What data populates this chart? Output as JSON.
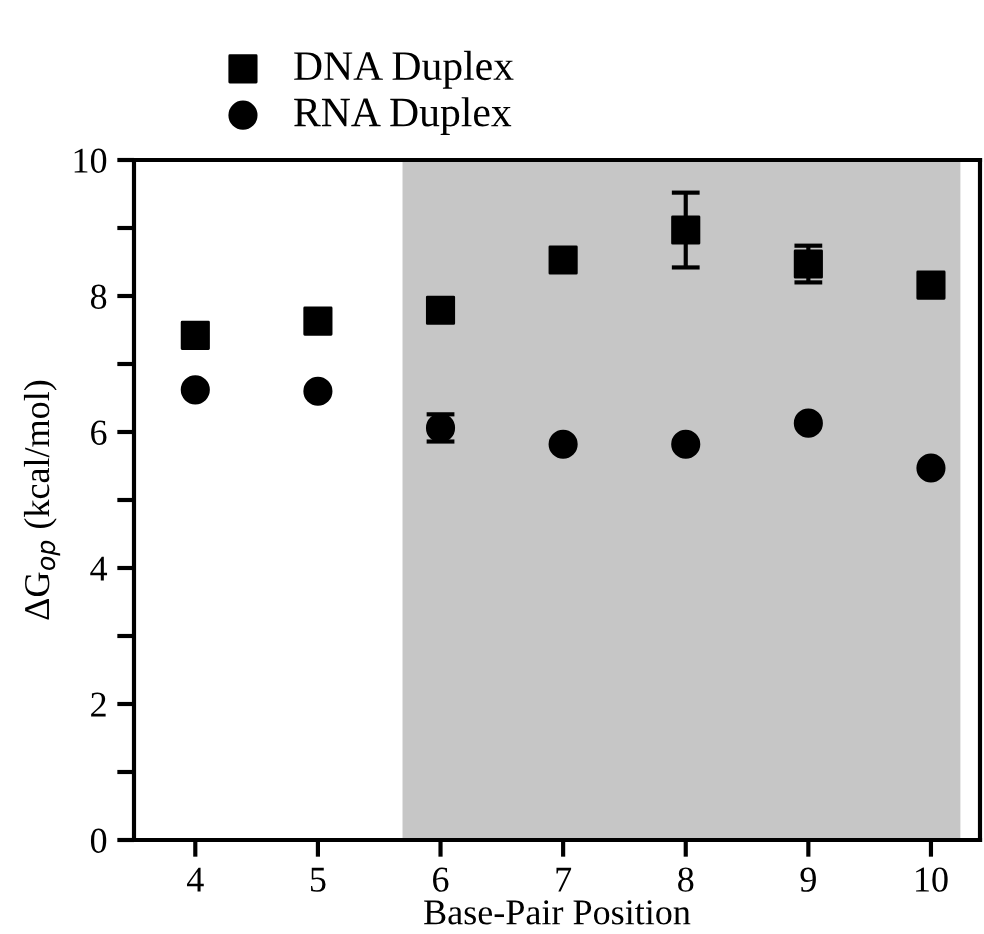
{
  "chart_data": {
    "type": "scatter",
    "xlabel": "Base-Pair Position",
    "ylabel": "ΔG$_{op}$ (kcal/mol)",
    "x": [
      4,
      5,
      6,
      7,
      8,
      9,
      10
    ],
    "series": [
      {
        "name": "DNA Duplex",
        "color": "#000000",
        "marker": "square",
        "values": [
          7.42,
          7.63,
          7.79,
          8.53,
          8.97,
          8.47,
          8.16
        ],
        "errors": [
          null,
          null,
          null,
          0.15,
          0.55,
          0.27,
          0.15
        ]
      },
      {
        "name": "RNA Duplex",
        "color": "#000000",
        "marker": "circle",
        "values": [
          6.62,
          6.6,
          6.06,
          5.82,
          5.82,
          6.13,
          5.47
        ],
        "errors": [
          null,
          null,
          0.2,
          null,
          null,
          null,
          null
        ]
      }
    ],
    "xlim": [
      3.5,
      10.4
    ],
    "xticks": [
      4,
      5,
      6,
      7,
      8,
      9,
      10
    ],
    "ylim": [
      0,
      10
    ],
    "yticks": [
      0,
      {
        "value": 1,
        "label": null
      },
      2,
      {
        "value": 3,
        "label": null
      },
      4,
      {
        "value": 5,
        "label": null
      },
      6,
      {
        "value": 7,
        "label": null
      },
      8,
      {
        "value": 9,
        "label": null
      },
      10
    ],
    "bands": [
      {
        "axis": "x",
        "from": 5.69,
        "to": 10.24,
        "color": "#c6c6c6"
      }
    ],
    "grid": false,
    "legend": "top left"
  }
}
